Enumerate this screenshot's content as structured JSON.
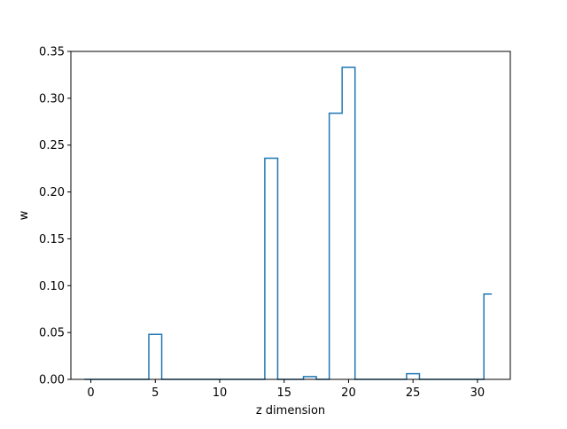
{
  "chart_data": {
    "type": "bar",
    "style": "step-histogram",
    "xlabel": "z dimension",
    "ylabel": "w",
    "xlim": [
      -1.55,
      32.55
    ],
    "ylim": [
      0,
      0.35
    ],
    "x_ticks": [
      0,
      5,
      10,
      15,
      20,
      25,
      30
    ],
    "y_ticks": [
      0.0,
      0.05,
      0.1,
      0.15,
      0.2,
      0.25,
      0.3,
      0.35
    ],
    "grid": false,
    "series_color": "#1f77b4",
    "x": [
      0,
      1,
      2,
      3,
      4,
      5,
      6,
      7,
      8,
      9,
      10,
      11,
      12,
      13,
      14,
      15,
      16,
      17,
      18,
      19,
      20,
      21,
      22,
      23,
      24,
      25,
      26,
      27,
      28,
      29,
      30,
      31
    ],
    "values": [
      0,
      0,
      0,
      0,
      0,
      0.048,
      0,
      0,
      0,
      0,
      0,
      0,
      0,
      0,
      0.236,
      0,
      0,
      0.003,
      0,
      0.284,
      0.333,
      0,
      0,
      0,
      0,
      0.006,
      0,
      0,
      0,
      0,
      0,
      0.091
    ]
  }
}
